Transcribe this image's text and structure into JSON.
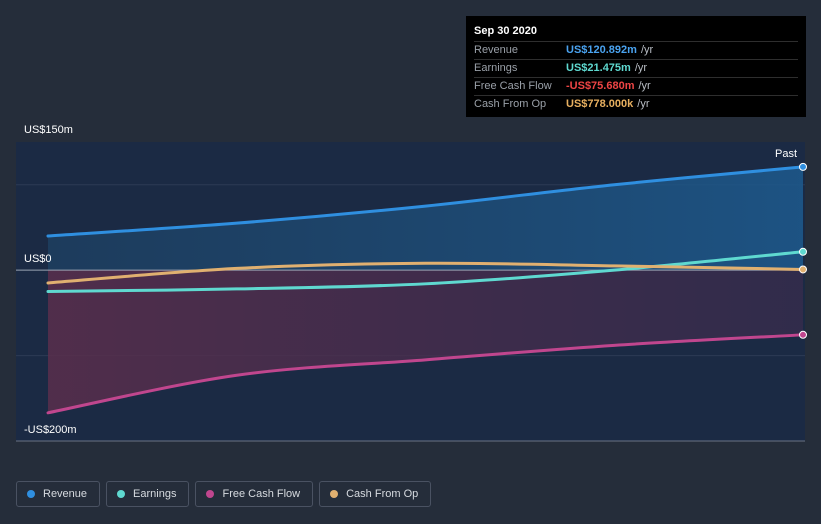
{
  "tooltip": {
    "date": "Sep 30 2020",
    "rows": [
      {
        "label": "Revenue",
        "value": "US$120.892m",
        "unit": "/yr",
        "color": "#4aa3f0"
      },
      {
        "label": "Earnings",
        "value": "US$21.475m",
        "unit": "/yr",
        "color": "#5fd9d0"
      },
      {
        "label": "Free Cash Flow",
        "value": "-US$75.680m",
        "unit": "/yr",
        "color": "#ee4545"
      },
      {
        "label": "Cash From Op",
        "value": "US$778.000k",
        "unit": "/yr",
        "color": "#e8b060"
      }
    ]
  },
  "legend": [
    {
      "label": "Revenue",
      "color": "#2f8fe0"
    },
    {
      "label": "Earnings",
      "color": "#5fd9d0"
    },
    {
      "label": "Free Cash Flow",
      "color": "#c0468e"
    },
    {
      "label": "Cash From Op",
      "color": "#e0b070"
    }
  ],
  "chart_data": {
    "type": "line",
    "ylim": [
      -200,
      150
    ],
    "y_unit": "US$m",
    "ytick_labels": [
      "US$150m",
      "US$0",
      "-US$200m"
    ],
    "ytick_values": [
      150,
      0,
      -200
    ],
    "period_label": "Past",
    "x": [
      0,
      0.25,
      0.5,
      0.75,
      1.0
    ],
    "series": [
      {
        "name": "Revenue",
        "color": "#2f8fe0",
        "values": [
          40,
          55,
          75,
          100,
          120.9
        ]
      },
      {
        "name": "Earnings",
        "color": "#5fd9d0",
        "values": [
          -25,
          -22,
          -16,
          0,
          21.5
        ]
      },
      {
        "name": "Free Cash Flow",
        "color": "#c0468e",
        "values": [
          -167,
          -123,
          -105,
          -88,
          -75.7
        ]
      },
      {
        "name": "Cash From Op",
        "color": "#e0b070",
        "values": [
          -15,
          2,
          8,
          5,
          0.8
        ]
      }
    ]
  }
}
